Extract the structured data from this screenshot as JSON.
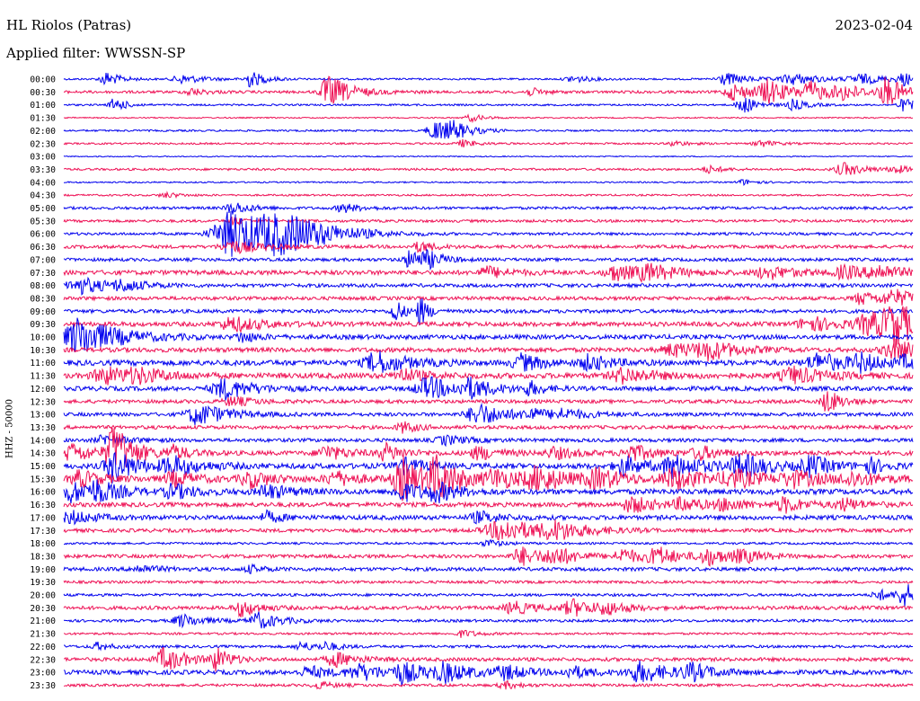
{
  "header": {
    "station": "HL Riolos (Patras)",
    "date": "2023-02-04",
    "filter": "Applied filter: WWSSN-SP",
    "channel": "HHZ - 50000"
  },
  "chart_data": {
    "type": "line",
    "title": "HL Riolos (Patras)",
    "subtitle": "Applied filter: WWSSN-SP",
    "ylabel": "HHZ - 50000",
    "date": "2023-02-04",
    "colors": {
      "even_rows": "#0000ee",
      "odd_rows": "#ee1155"
    },
    "grid": false,
    "rows": [
      {
        "label": "00:00",
        "baseline": 1.0,
        "events": [
          [
            0.05,
            8,
            0.01
          ],
          [
            0.14,
            5,
            0.015
          ],
          [
            0.22,
            9,
            0.01
          ],
          [
            0.6,
            4,
            0.012
          ],
          [
            0.78,
            7,
            0.015
          ],
          [
            0.86,
            6,
            0.02
          ],
          [
            0.94,
            5,
            0.02
          ],
          [
            0.99,
            6,
            0.01
          ]
        ]
      },
      {
        "label": "00:30",
        "baseline": 1.5,
        "events": [
          [
            0.15,
            4,
            0.01
          ],
          [
            0.31,
            13,
            0.01
          ],
          [
            0.32,
            7,
            0.02
          ],
          [
            0.55,
            4,
            0.01
          ],
          [
            0.79,
            9,
            0.015
          ],
          [
            0.83,
            12,
            0.015
          ],
          [
            0.88,
            10,
            0.015
          ],
          [
            0.92,
            7,
            0.015
          ],
          [
            0.97,
            16,
            0.012
          ]
        ]
      },
      {
        "label": "01:00",
        "baseline": 1.0,
        "events": [
          [
            0.06,
            8,
            0.008
          ],
          [
            0.8,
            10,
            0.01
          ],
          [
            0.86,
            6,
            0.01
          ],
          [
            0.99,
            7,
            0.01
          ]
        ]
      },
      {
        "label": "01:30",
        "baseline": 0.7,
        "events": [
          [
            0.48,
            4,
            0.01
          ]
        ]
      },
      {
        "label": "02:00",
        "baseline": 1.0,
        "events": [
          [
            0.44,
            12,
            0.015
          ],
          [
            0.46,
            6,
            0.01
          ]
        ]
      },
      {
        "label": "02:30",
        "baseline": 1.0,
        "events": [
          [
            0.47,
            4,
            0.01
          ],
          [
            0.72,
            3,
            0.01
          ],
          [
            0.82,
            4,
            0.01
          ]
        ]
      },
      {
        "label": "03:00",
        "baseline": 0.6,
        "events": []
      },
      {
        "label": "03:30",
        "baseline": 1.2,
        "events": [
          [
            0.76,
            4,
            0.01
          ],
          [
            0.92,
            7,
            0.015
          ],
          [
            0.98,
            4,
            0.01
          ]
        ]
      },
      {
        "label": "04:00",
        "baseline": 0.8,
        "events": [
          [
            0.8,
            3,
            0.01
          ]
        ]
      },
      {
        "label": "04:30",
        "baseline": 1.0,
        "events": [
          [
            0.12,
            3,
            0.01
          ]
        ]
      },
      {
        "label": "05:00",
        "baseline": 1.5,
        "events": [
          [
            0.2,
            7,
            0.012
          ],
          [
            0.33,
            5,
            0.012
          ]
        ]
      },
      {
        "label": "05:30",
        "baseline": 1.5,
        "events": [
          [
            0.2,
            4,
            0.01
          ]
        ]
      },
      {
        "label": "06:00",
        "baseline": 1.5,
        "events": [
          [
            0.2,
            26,
            0.03
          ],
          [
            0.25,
            14,
            0.03
          ],
          [
            0.28,
            6,
            0.03
          ]
        ]
      },
      {
        "label": "06:30",
        "baseline": 1.8,
        "events": [
          [
            0.2,
            7,
            0.02
          ],
          [
            0.42,
            6,
            0.01
          ]
        ]
      },
      {
        "label": "07:00",
        "baseline": 1.8,
        "events": [
          [
            0.41,
            11,
            0.012
          ],
          [
            0.43,
            6,
            0.01
          ]
        ]
      },
      {
        "label": "07:30",
        "baseline": 2.5,
        "events": [
          [
            0.5,
            6,
            0.015
          ],
          [
            0.65,
            9,
            0.015
          ],
          [
            0.69,
            8,
            0.02
          ],
          [
            0.83,
            7,
            0.02
          ],
          [
            0.92,
            7,
            0.015
          ],
          [
            0.96,
            8,
            0.015
          ]
        ]
      },
      {
        "label": "08:00",
        "baseline": 2.0,
        "events": [
          [
            0.02,
            9,
            0.02
          ],
          [
            0.07,
            5,
            0.015
          ]
        ]
      },
      {
        "label": "08:30",
        "baseline": 2.0,
        "events": [
          [
            0.94,
            7,
            0.012
          ],
          [
            0.98,
            8,
            0.02
          ]
        ]
      },
      {
        "label": "09:00",
        "baseline": 2.0,
        "events": [
          [
            0.39,
            14,
            0.006
          ],
          [
            0.42,
            16,
            0.006
          ]
        ]
      },
      {
        "label": "09:30",
        "baseline": 2.5,
        "events": [
          [
            0.2,
            8,
            0.02
          ],
          [
            0.88,
            8,
            0.02
          ],
          [
            0.95,
            12,
            0.02
          ],
          [
            0.98,
            20,
            0.02
          ]
        ]
      },
      {
        "label": "10:00",
        "baseline": 2.5,
        "events": [
          [
            0.02,
            22,
            0.025
          ],
          [
            0.21,
            6,
            0.01
          ]
        ]
      },
      {
        "label": "10:30",
        "baseline": 2.5,
        "events": [
          [
            0.72,
            7,
            0.02
          ],
          [
            0.76,
            9,
            0.02
          ],
          [
            0.98,
            10,
            0.02
          ]
        ]
      },
      {
        "label": "11:00",
        "baseline": 3.0,
        "events": [
          [
            0.37,
            12,
            0.02
          ],
          [
            0.54,
            9,
            0.015
          ],
          [
            0.62,
            8,
            0.015
          ],
          [
            0.89,
            10,
            0.02
          ],
          [
            0.94,
            8,
            0.015
          ],
          [
            0.99,
            6,
            0.01
          ]
        ]
      },
      {
        "label": "11:30",
        "baseline": 3.0,
        "events": [
          [
            0.05,
            9,
            0.02
          ],
          [
            0.09,
            6,
            0.02
          ],
          [
            0.4,
            7,
            0.015
          ],
          [
            0.66,
            8,
            0.02
          ],
          [
            0.86,
            9,
            0.02
          ]
        ]
      },
      {
        "label": "12:00",
        "baseline": 2.5,
        "events": [
          [
            0.19,
            11,
            0.02
          ],
          [
            0.43,
            12,
            0.02
          ],
          [
            0.48,
            9,
            0.015
          ],
          [
            0.55,
            7,
            0.01
          ]
        ]
      },
      {
        "label": "12:30",
        "baseline": 2.0,
        "events": [
          [
            0.2,
            5,
            0.015
          ],
          [
            0.9,
            13,
            0.01
          ]
        ]
      },
      {
        "label": "13:00",
        "baseline": 2.0,
        "events": [
          [
            0.16,
            12,
            0.02
          ],
          [
            0.49,
            12,
            0.02
          ],
          [
            0.55,
            6,
            0.01
          ],
          [
            0.59,
            5,
            0.02
          ]
        ]
      },
      {
        "label": "13:30",
        "baseline": 2.0,
        "events": [
          [
            0.4,
            6,
            0.01
          ]
        ]
      },
      {
        "label": "14:00",
        "baseline": 2.0,
        "events": [
          [
            0.05,
            6,
            0.015
          ],
          [
            0.45,
            5,
            0.015
          ]
        ]
      },
      {
        "label": "14:30",
        "baseline": 2.5,
        "events": [
          [
            0.01,
            10,
            0.015
          ],
          [
            0.06,
            12,
            0.015
          ],
          [
            0.06,
            18,
            0.012
          ],
          [
            0.13,
            7,
            0.012
          ],
          [
            0.31,
            8,
            0.015
          ],
          [
            0.38,
            9,
            0.012
          ],
          [
            0.49,
            7,
            0.015
          ],
          [
            0.58,
            6,
            0.015
          ],
          [
            0.67,
            9,
            0.015
          ],
          [
            0.75,
            7,
            0.015
          ]
        ]
      },
      {
        "label": "15:00",
        "baseline": 3.0,
        "events": [
          [
            0.06,
            18,
            0.015
          ],
          [
            0.13,
            9,
            0.02
          ],
          [
            0.4,
            8,
            0.015
          ],
          [
            0.66,
            10,
            0.015
          ],
          [
            0.72,
            12,
            0.02
          ],
          [
            0.8,
            11,
            0.02
          ],
          [
            0.88,
            10,
            0.015
          ],
          [
            0.95,
            8,
            0.01
          ]
        ]
      },
      {
        "label": "15:30",
        "baseline": 3.0,
        "events": [
          [
            0.02,
            9,
            0.015
          ],
          [
            0.13,
            8,
            0.015
          ],
          [
            0.22,
            9,
            0.015
          ],
          [
            0.32,
            8,
            0.015
          ],
          [
            0.4,
            22,
            0.015
          ],
          [
            0.44,
            22,
            0.015
          ],
          [
            0.51,
            10,
            0.02
          ],
          [
            0.56,
            12,
            0.02
          ],
          [
            0.63,
            10,
            0.02
          ],
          [
            0.72,
            11,
            0.02
          ],
          [
            0.79,
            9,
            0.02
          ],
          [
            0.86,
            8,
            0.02
          ],
          [
            0.93,
            7,
            0.02
          ]
        ]
      },
      {
        "label": "16:00",
        "baseline": 3.0,
        "events": [
          [
            0.01,
            11,
            0.015
          ],
          [
            0.04,
            10,
            0.015
          ],
          [
            0.13,
            8,
            0.015
          ],
          [
            0.24,
            8,
            0.015
          ],
          [
            0.4,
            10,
            0.015
          ],
          [
            0.44,
            9,
            0.015
          ]
        ]
      },
      {
        "label": "16:30",
        "baseline": 2.5,
        "events": [
          [
            0.67,
            9,
            0.015
          ],
          [
            0.73,
            7,
            0.015
          ],
          [
            0.78,
            6,
            0.015
          ],
          [
            0.85,
            8,
            0.015
          ],
          [
            0.92,
            6,
            0.015
          ]
        ]
      },
      {
        "label": "17:00",
        "baseline": 2.5,
        "events": [
          [
            0.01,
            7,
            0.015
          ],
          [
            0.24,
            6,
            0.01
          ],
          [
            0.49,
            6,
            0.015
          ]
        ]
      },
      {
        "label": "17:30",
        "baseline": 2.0,
        "events": [
          [
            0.52,
            12,
            0.03
          ],
          [
            0.58,
            8,
            0.02
          ]
        ]
      },
      {
        "label": "18:00",
        "baseline": 1.2,
        "events": [
          [
            0.5,
            4,
            0.01
          ]
        ]
      },
      {
        "label": "18:30",
        "baseline": 2.0,
        "events": [
          [
            0.54,
            10,
            0.015
          ],
          [
            0.58,
            9,
            0.015
          ],
          [
            0.66,
            8,
            0.015
          ],
          [
            0.7,
            9,
            0.015
          ],
          [
            0.76,
            9,
            0.015
          ],
          [
            0.8,
            6,
            0.015
          ]
        ]
      },
      {
        "label": "19:00",
        "baseline": 2.0,
        "events": [
          [
            0.09,
            4,
            0.015
          ],
          [
            0.22,
            4,
            0.01
          ]
        ]
      },
      {
        "label": "19:30",
        "baseline": 1.5,
        "events": []
      },
      {
        "label": "20:00",
        "baseline": 1.5,
        "events": [
          [
            0.99,
            13,
            0.01
          ],
          [
            0.96,
            6,
            0.01
          ]
        ]
      },
      {
        "label": "20:30",
        "baseline": 2.0,
        "events": [
          [
            0.21,
            9,
            0.012
          ],
          [
            0.53,
            7,
            0.015
          ],
          [
            0.6,
            9,
            0.015
          ],
          [
            0.64,
            6,
            0.015
          ]
        ]
      },
      {
        "label": "21:00",
        "baseline": 1.5,
        "events": [
          [
            0.14,
            7,
            0.015
          ],
          [
            0.23,
            9,
            0.015
          ]
        ]
      },
      {
        "label": "21:30",
        "baseline": 1.2,
        "events": [
          [
            0.47,
            4,
            0.01
          ]
        ]
      },
      {
        "label": "22:00",
        "baseline": 1.5,
        "events": [
          [
            0.04,
            4,
            0.01
          ],
          [
            0.28,
            5,
            0.01
          ],
          [
            0.31,
            4,
            0.01
          ]
        ]
      },
      {
        "label": "22:30",
        "baseline": 2.0,
        "events": [
          [
            0.12,
            13,
            0.015
          ],
          [
            0.18,
            12,
            0.01
          ],
          [
            0.32,
            8,
            0.015
          ]
        ]
      },
      {
        "label": "23:00",
        "baseline": 2.5,
        "events": [
          [
            0.29,
            6,
            0.015
          ],
          [
            0.35,
            8,
            0.02
          ],
          [
            0.4,
            10,
            0.015
          ],
          [
            0.45,
            9,
            0.02
          ],
          [
            0.52,
            7,
            0.015
          ],
          [
            0.6,
            6,
            0.015
          ],
          [
            0.68,
            11,
            0.02
          ],
          [
            0.74,
            8,
            0.015
          ]
        ]
      },
      {
        "label": "23:30",
        "baseline": 1.5,
        "events": [
          [
            0.3,
            4,
            0.01
          ],
          [
            0.52,
            4,
            0.01
          ]
        ]
      }
    ]
  }
}
